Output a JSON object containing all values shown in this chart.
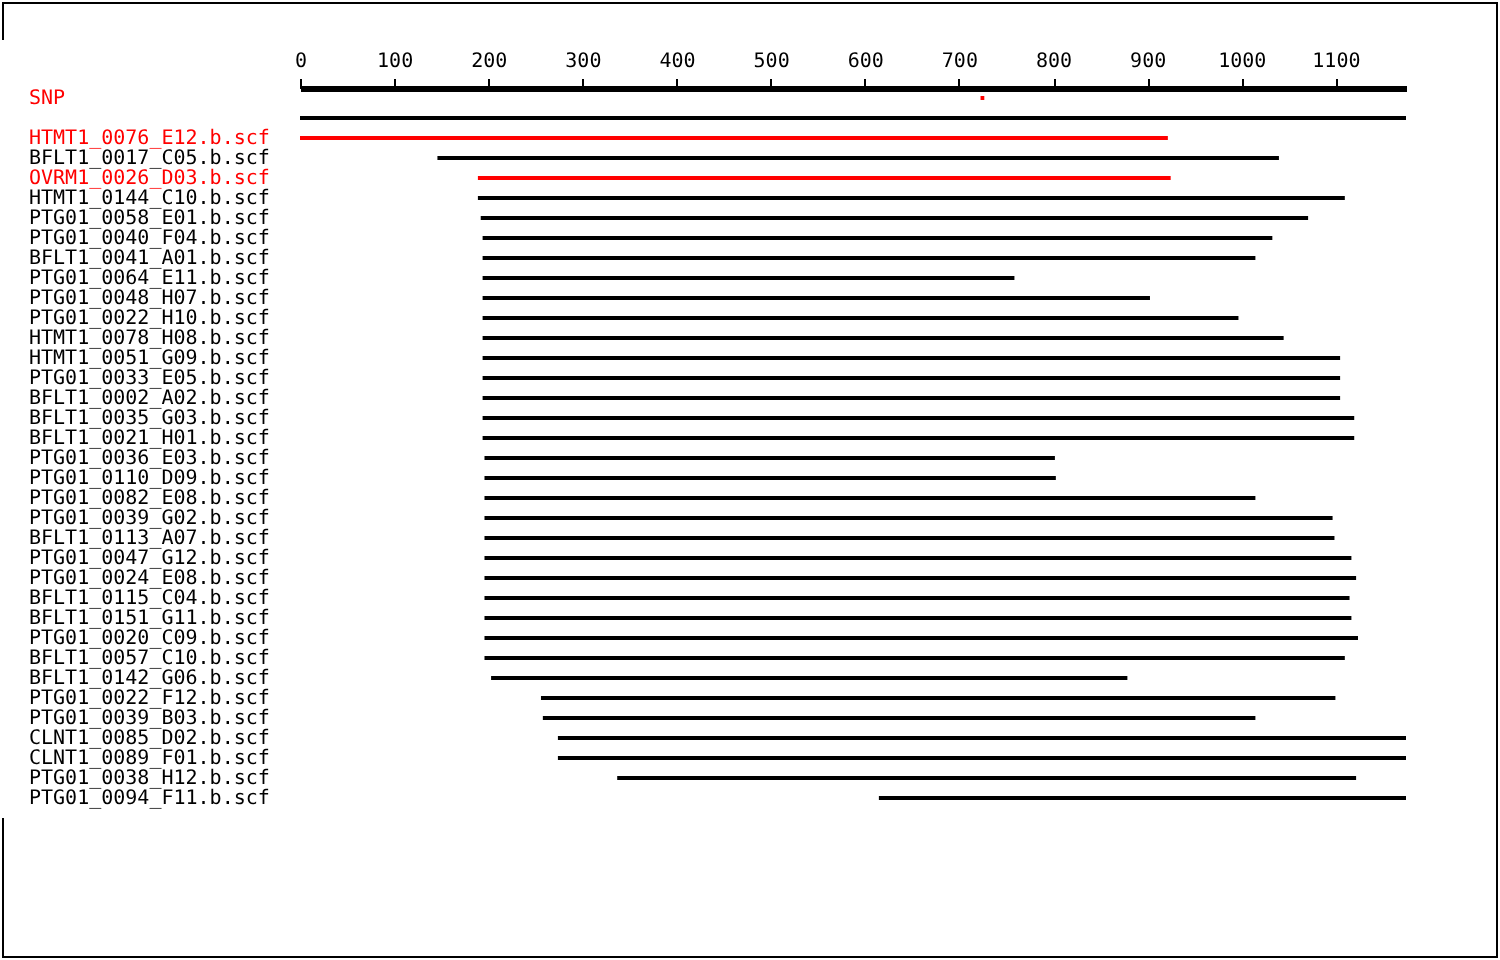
{
  "chart_data": {
    "type": "bar",
    "orientation": "horizontal",
    "categories": [
      "SNP",
      null,
      "HTMT1_0076_E12.b.scf",
      "BFLT1_0017_C05.b.scf",
      "OVRM1_0026_D03.b.scf",
      "HTMT1_0144_C10.b.scf",
      "PTG01_0058_E01.b.scf",
      "PTG01_0040_F04.b.scf",
      "BFLT1_0041_A01.b.scf",
      "PTG01_0064_E11.b.scf",
      "PTG01_0048_H07.b.scf",
      "PTG01_0022_H10.b.scf",
      "HTMT1_0078_H08.b.scf",
      "HTMT1_0051_G09.b.scf",
      "PTG01_0033_E05.b.scf",
      "BFLT1_0002_A02.b.scf",
      "BFLT1_0035_G03.b.scf",
      "BFLT1_0021_H01.b.scf",
      "PTG01_0036_E03.b.scf",
      "PTG01_0110_D09.b.scf",
      "PTG01_0082_E08.b.scf",
      "PTG01_0039_G02.b.scf",
      "BFLT1_0113_A07.b.scf",
      "PTG01_0047_G12.b.scf",
      "PTG01_0024_E08.b.scf",
      "BFLT1_0115_C04.b.scf",
      "BFLT1_0151_G11.b.scf",
      "PTG01_0020_C09.b.scf",
      "BFLT1_0057_C10.b.scf",
      "BFLT1_0142_G06.b.scf",
      "PTG01_0022_F12.b.scf",
      "PTG01_0039_B03.b.scf",
      "CLNT1_0085_D02.b.scf",
      "CLNT1_0089_F01.b.scf",
      "PTG01_0038_H12.b.scf",
      "PTG01_0094_F11.b.scf"
    ],
    "base": [
      723,
      0,
      0,
      146,
      189,
      189,
      192,
      194,
      194,
      194,
      194,
      194,
      194,
      194,
      194,
      194,
      194,
      194,
      196,
      196,
      196,
      196,
      196,
      196,
      196,
      196,
      196,
      196,
      196,
      203,
      256,
      258,
      274,
      274,
      337,
      615
    ],
    "values": [
      4,
      1175,
      922,
      894,
      736,
      921,
      879,
      839,
      821,
      565,
      709,
      803,
      851,
      911,
      911,
      911,
      926,
      926,
      606,
      607,
      819,
      901,
      903,
      921,
      926,
      919,
      921,
      928,
      914,
      676,
      844,
      757,
      901,
      901,
      785,
      560
    ],
    "colors": [
      "#ff0000",
      "#000000",
      "#ff0000",
      "#000000",
      "#ff0000",
      "#000000",
      "#000000",
      "#000000",
      "#000000",
      "#000000",
      "#000000",
      "#000000",
      "#000000",
      "#000000",
      "#000000",
      "#000000",
      "#000000",
      "#000000",
      "#000000",
      "#000000",
      "#000000",
      "#000000",
      "#000000",
      "#000000",
      "#000000",
      "#000000",
      "#000000",
      "#000000",
      "#000000",
      "#000000",
      "#000000",
      "#000000",
      "#000000",
      "#000000",
      "#000000",
      "#000000"
    ],
    "xlim": [
      0,
      1175
    ],
    "xticks": [
      0,
      100,
      200,
      300,
      400,
      500,
      600,
      700,
      800,
      900,
      1000,
      1100
    ],
    "grid": false
  }
}
